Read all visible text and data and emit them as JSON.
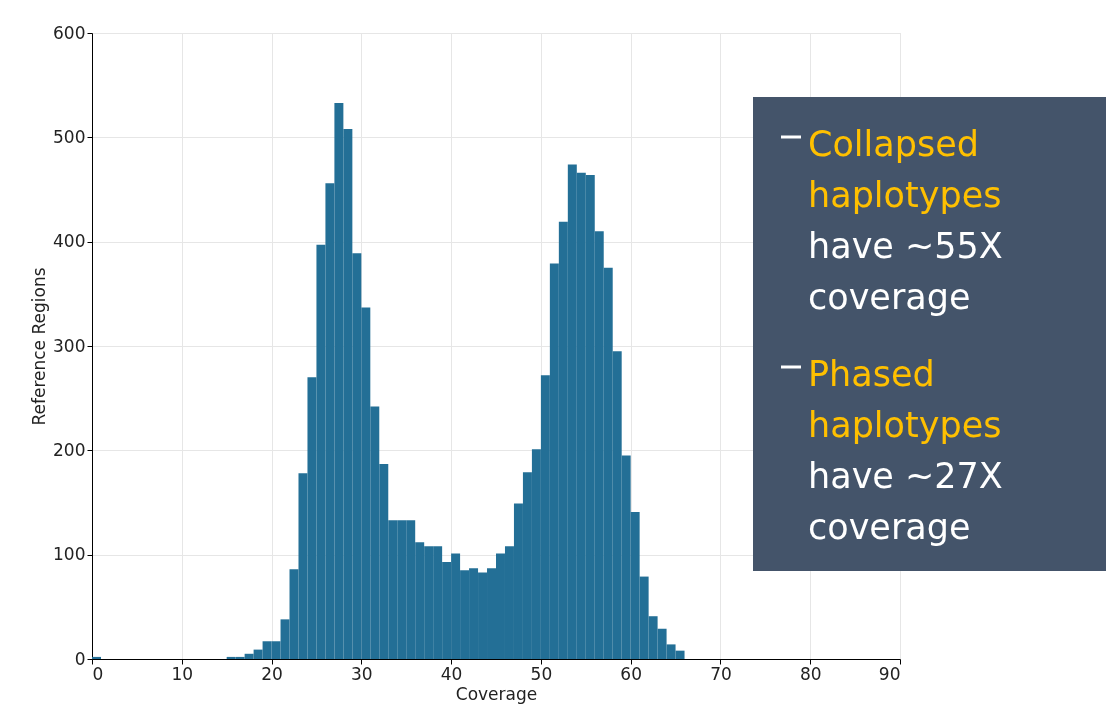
{
  "chart_data": {
    "type": "histogram",
    "xlabel": "Coverage",
    "ylabel": "Reference Regions",
    "bins": [
      0,
      1,
      2,
      3,
      4,
      5,
      6,
      7,
      8,
      9,
      10,
      11,
      12,
      13,
      14,
      15,
      16,
      17,
      18,
      19,
      20,
      21,
      22,
      23,
      24,
      25,
      26,
      27,
      28,
      29,
      30,
      31,
      32,
      33,
      34,
      35,
      36,
      37,
      38,
      39,
      40,
      41,
      42,
      43,
      44,
      45,
      46,
      47,
      48,
      49,
      50,
      51,
      52,
      53,
      54,
      55,
      56,
      57,
      58,
      59,
      60,
      61,
      62,
      63,
      64,
      65,
      66
    ],
    "values": [
      2,
      0,
      0,
      0,
      0,
      0,
      0,
      0,
      0,
      0,
      0,
      0,
      0,
      0,
      0,
      2,
      2,
      5,
      9,
      17,
      17,
      38,
      86,
      178,
      270,
      397,
      456,
      533,
      508,
      389,
      337,
      242,
      187,
      133,
      133,
      133,
      112,
      108,
      108,
      93,
      101,
      85,
      87,
      83,
      87,
      101,
      108,
      149,
      179,
      201,
      272,
      379,
      419,
      474,
      466,
      464,
      410,
      375,
      295,
      195,
      141,
      79,
      41,
      29,
      14,
      8
    ],
    "color": "#236f96",
    "xlim": [
      0,
      90
    ],
    "xticks": [
      0,
      10,
      20,
      30,
      40,
      50,
      60,
      70,
      80,
      90
    ],
    "ylim": [
      0,
      600
    ],
    "yticks": [
      0,
      100,
      200,
      300,
      400,
      500,
      600
    ],
    "grid": true,
    "annotations": [
      "Collapsed haplotypes have ~55X coverage",
      "Phased haplotypes have ~27X coverage"
    ]
  }
}
